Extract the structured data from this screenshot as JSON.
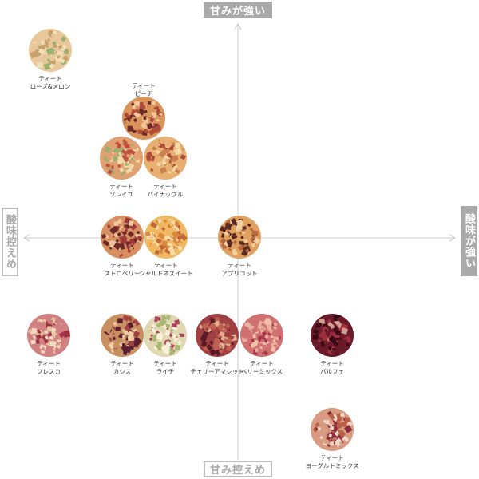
{
  "axes": {
    "top": "甘みが強い",
    "bottom": "甘み控えめ",
    "left": "酸味控えめ",
    "right": "酸味が強い"
  },
  "items": [
    {
      "brand": "ティート",
      "name": "ローズ&メロン"
    },
    {
      "brand": "ティート",
      "name": "ピーチ"
    },
    {
      "brand": "ティート",
      "name": "ソレイユ"
    },
    {
      "brand": "ティート",
      "name": "パイナップル"
    },
    {
      "brand": "ティート",
      "name": "ストロベリー"
    },
    {
      "brand": "ティート",
      "name": "シャルドネスイート"
    },
    {
      "brand": "ティート",
      "name": "アプリコット"
    },
    {
      "brand": "ティート",
      "name": "フレスカ"
    },
    {
      "brand": "ティート",
      "name": "カシス"
    },
    {
      "brand": "ティート",
      "name": "ライチ"
    },
    {
      "brand": "ティート",
      "name": "チェリーアマレット"
    },
    {
      "brand": "ティート",
      "name": "ベリーミックス"
    },
    {
      "brand": "ティート",
      "name": "パルフェ"
    },
    {
      "brand": "ティート",
      "name": "ヨーグルトミックス"
    }
  ]
}
